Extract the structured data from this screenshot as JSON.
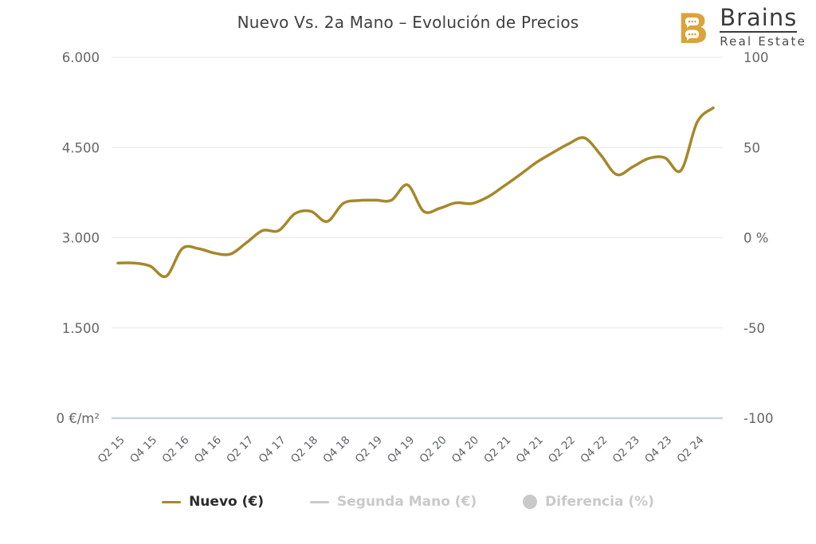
{
  "header": {
    "title": "Nuevo Vs. 2a Mano – Evolución de Precios"
  },
  "logo": {
    "brand": "Brains",
    "sub": "Real Estate",
    "gold": "#d9a43c",
    "text_color": "#3b3b3b"
  },
  "legend": {
    "items": [
      {
        "label": "Nuevo (€)",
        "marker": "line",
        "color": "#a6882b",
        "text_color": "#2b2b2b",
        "active": true
      },
      {
        "label": "Segunda Mano (€)",
        "marker": "line",
        "color": "#c9c9c9",
        "text_color": "#c9c9c9",
        "active": false
      },
      {
        "label": "Diferencia (%)",
        "marker": "circle",
        "color": "#c9c9c9",
        "text_color": "#c9c9c9",
        "active": false
      }
    ]
  },
  "chart_data": {
    "type": "line",
    "title": "Nuevo Vs. 2a Mano – Evolución de Precios",
    "x": [
      "Q2 15",
      "Q3 15",
      "Q4 15",
      "Q1 16",
      "Q2 16",
      "Q3 16",
      "Q4 16",
      "Q1 17",
      "Q2 17",
      "Q3 17",
      "Q4 17",
      "Q1 18",
      "Q2 18",
      "Q3 18",
      "Q4 18",
      "Q1 19",
      "Q2 19",
      "Q3 19",
      "Q4 19",
      "Q1 20",
      "Q2 20",
      "Q3 20",
      "Q4 20",
      "Q1 21",
      "Q2 21",
      "Q3 21",
      "Q4 21",
      "Q1 22",
      "Q2 22",
      "Q3 22",
      "Q4 22",
      "Q1 23",
      "Q2 23",
      "Q3 23",
      "Q4 23",
      "Q1 24",
      "Q2 24",
      "Q3 24"
    ],
    "x_tick_labels": [
      "Q2 15",
      "Q4 15",
      "Q2 16",
      "Q4 16",
      "Q2 17",
      "Q4 17",
      "Q2 18",
      "Q4 18",
      "Q2 19",
      "Q4 19",
      "Q2 20",
      "Q4 20",
      "Q2 21",
      "Q4 21",
      "Q2 22",
      "Q4 22",
      "Q2 23",
      "Q4 23",
      "Q2 24"
    ],
    "series": [
      {
        "name": "Nuevo (€)",
        "color": "#a6882b",
        "values": [
          2580,
          2580,
          2530,
          2360,
          2820,
          2820,
          2745,
          2730,
          2920,
          3120,
          3120,
          3400,
          3440,
          3270,
          3570,
          3620,
          3625,
          3625,
          3880,
          3440,
          3490,
          3580,
          3570,
          3680,
          3860,
          4050,
          4250,
          4410,
          4560,
          4660,
          4380,
          4050,
          4180,
          4320,
          4330,
          4120,
          4920,
          5160
        ]
      }
    ],
    "hidden_series": [
      "Segunda Mano (€)",
      "Diferencia (%)"
    ],
    "y_axis_left": {
      "unit": "€/m²",
      "range": [
        0,
        6000
      ],
      "ticks": [
        {
          "value": 6000,
          "label": "6.000"
        },
        {
          "value": 4500,
          "label": "4.500"
        },
        {
          "value": 3000,
          "label": "3.000"
        },
        {
          "value": 1500,
          "label": "1.500"
        },
        {
          "value": 0,
          "label": "0 €/m²"
        }
      ]
    },
    "y_axis_right": {
      "unit": "%",
      "range": [
        -100,
        100
      ],
      "ticks": [
        {
          "value": 100,
          "label": "100"
        },
        {
          "value": 50,
          "label": "50"
        },
        {
          "value": 0,
          "label": "0 %"
        },
        {
          "value": -50,
          "label": "-50"
        },
        {
          "value": -100,
          "label": "-100"
        }
      ]
    },
    "grid": true,
    "grid_color": "#e7e7e7",
    "zero_line_color": "#c9d3e0",
    "axis_label_color": "#666666",
    "x_label_color": "#5f6368",
    "legend_position": "bottom"
  }
}
